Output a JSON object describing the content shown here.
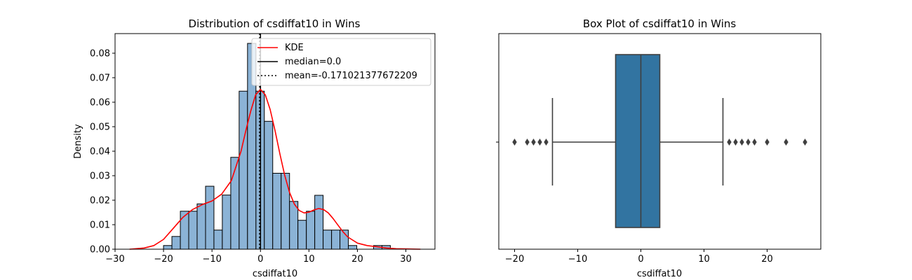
{
  "chart_data": [
    {
      "type": "histogram",
      "title": "Distribution of csdiffat10 in Wins",
      "xlabel": "csdiffat10",
      "ylabel": "Density",
      "xlim": [
        -30,
        36
      ],
      "ylim": [
        0,
        0.088
      ],
      "xticks": [
        -30,
        -20,
        -10,
        0,
        10,
        20,
        30
      ],
      "xtick_labels": [
        "−30",
        "−20",
        "−10",
        "0",
        "10",
        "20",
        "30"
      ],
      "yticks": [
        0,
        0.01,
        0.02,
        0.03,
        0.04,
        0.05,
        0.06,
        0.07,
        0.08
      ],
      "ytick_labels": [
        "0.00",
        "0.01",
        "0.02",
        "0.03",
        "0.04",
        "0.05",
        "0.06",
        "0.07",
        "0.08"
      ],
      "bins": [
        {
          "x0": -20.0,
          "x1": -18.27,
          "density": 0.0015
        },
        {
          "x0": -18.27,
          "x1": -16.53,
          "density": 0.0052
        },
        {
          "x0": -16.53,
          "x1": -14.8,
          "density": 0.0155
        },
        {
          "x0": -14.8,
          "x1": -13.07,
          "density": 0.0155
        },
        {
          "x0": -13.07,
          "x1": -11.33,
          "density": 0.0185
        },
        {
          "x0": -11.33,
          "x1": -9.6,
          "density": 0.0257
        },
        {
          "x0": -9.6,
          "x1": -7.87,
          "density": 0.0078
        },
        {
          "x0": -7.87,
          "x1": -6.13,
          "density": 0.0221
        },
        {
          "x0": -6.13,
          "x1": -4.4,
          "density": 0.0375
        },
        {
          "x0": -4.4,
          "x1": -2.67,
          "density": 0.0645
        },
        {
          "x0": -2.67,
          "x1": -0.93,
          "density": 0.084
        },
        {
          "x0": -0.93,
          "x1": 0.8,
          "density": 0.0645
        },
        {
          "x0": 0.8,
          "x1": 2.53,
          "density": 0.0522
        },
        {
          "x0": 2.53,
          "x1": 4.27,
          "density": 0.031
        },
        {
          "x0": 4.27,
          "x1": 6.0,
          "density": 0.031
        },
        {
          "x0": 6.0,
          "x1": 7.73,
          "density": 0.0195
        },
        {
          "x0": 7.73,
          "x1": 9.47,
          "density": 0.0118
        },
        {
          "x0": 9.47,
          "x1": 11.2,
          "density": 0.0155
        },
        {
          "x0": 11.2,
          "x1": 12.93,
          "density": 0.022
        },
        {
          "x0": 12.93,
          "x1": 14.67,
          "density": 0.0078
        },
        {
          "x0": 14.67,
          "x1": 16.4,
          "density": 0.0078
        },
        {
          "x0": 16.4,
          "x1": 18.13,
          "density": 0.0078
        },
        {
          "x0": 18.13,
          "x1": 19.87,
          "density": 0.0015
        },
        {
          "x0": 19.87,
          "x1": 21.6,
          "density": 0.0
        },
        {
          "x0": 21.6,
          "x1": 23.33,
          "density": 0.0
        },
        {
          "x0": 23.33,
          "x1": 25.07,
          "density": 0.0015
        },
        {
          "x0": 25.07,
          "x1": 26.8,
          "density": 0.0015
        }
      ],
      "kde": {
        "name": "KDE",
        "x": [
          -27,
          -24,
          -22,
          -20,
          -18,
          -16,
          -14,
          -12,
          -10,
          -8,
          -6,
          -4,
          -3,
          -2,
          -1,
          0,
          1,
          2,
          3,
          4,
          5,
          6,
          7,
          8,
          9,
          10,
          11,
          12,
          13,
          14,
          15,
          16,
          17,
          18,
          20,
          22,
          24,
          26,
          28,
          30,
          33
        ],
        "y": [
          0.0,
          0.0005,
          0.0015,
          0.004,
          0.0085,
          0.013,
          0.0162,
          0.0182,
          0.0197,
          0.0225,
          0.028,
          0.04,
          0.0485,
          0.0565,
          0.063,
          0.0652,
          0.063,
          0.057,
          0.0485,
          0.039,
          0.0302,
          0.0232,
          0.0184,
          0.0158,
          0.0148,
          0.0151,
          0.016,
          0.0166,
          0.0162,
          0.0148,
          0.0125,
          0.0098,
          0.0072,
          0.005,
          0.0025,
          0.0015,
          0.001,
          0.0005,
          0.0002,
          0.0001,
          0.0
        ],
        "color": "#ff0000"
      },
      "median": {
        "label": "median=0.0",
        "value": 0.0,
        "color": "#000000"
      },
      "mean": {
        "label": "mean=-0.171021377672209",
        "value": -0.171021377672209,
        "color": "#000000"
      },
      "bar_fill": "#8bb3d6",
      "bar_edge": "#000000",
      "legend_position": "upper-right"
    },
    {
      "type": "box",
      "title": "Box Plot of csdiffat10 in Wins",
      "xlabel": "csdiffat10",
      "xlim": [
        -22.5,
        28.5
      ],
      "xticks": [
        -20,
        -10,
        0,
        10,
        20
      ],
      "xtick_labels": [
        "−20",
        "−10",
        "0",
        "10",
        "20"
      ],
      "q1": -4,
      "median": 0,
      "q3": 3,
      "whisker_low": -14,
      "whisker_high": 13,
      "outliers": [
        -20,
        -18,
        -17,
        -16,
        -15,
        14,
        15,
        16,
        17,
        18,
        20,
        23,
        26
      ],
      "box_fill": "#3274a1",
      "line_color": "#3f3f3f"
    }
  ]
}
